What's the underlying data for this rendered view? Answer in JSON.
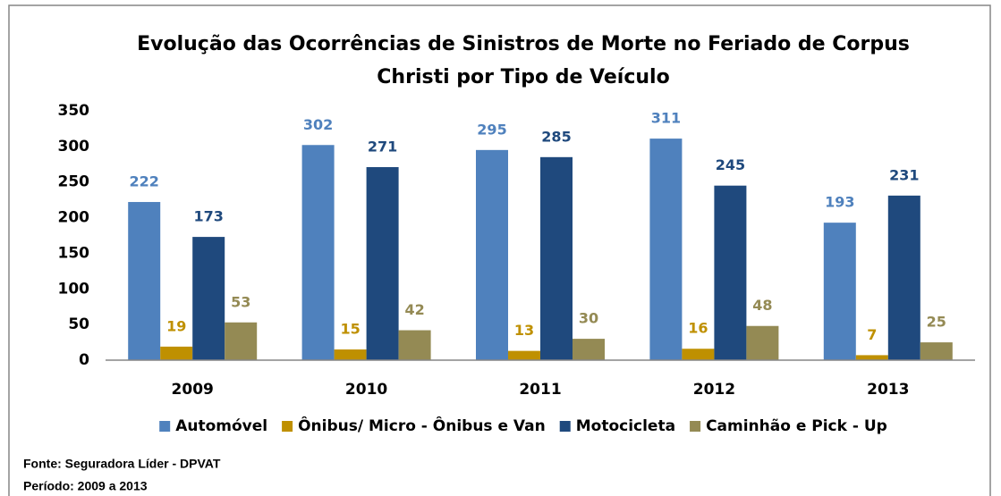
{
  "chart_data": {
    "type": "bar",
    "title": [
      "Evolução das Ocorrências de Sinistros de Morte no Feriado de Corpus",
      "Christi por Tipo de Veículo"
    ],
    "categories": [
      "2009",
      "2010",
      "2011",
      "2012",
      "2013"
    ],
    "series": [
      {
        "name": "Automóvel",
        "color": "#4f81bd",
        "values": [
          222,
          302,
          295,
          311,
          193
        ]
      },
      {
        "name": "Ônibus/ Micro - Ônibus e Van",
        "color": "#bf9000",
        "values": [
          19,
          15,
          13,
          16,
          7
        ]
      },
      {
        "name": "Motocicleta",
        "color": "#1f497d",
        "values": [
          173,
          271,
          285,
          245,
          231
        ]
      },
      {
        "name": "Caminhão e Pick - Up",
        "color": "#948a54",
        "values": [
          53,
          42,
          30,
          48,
          25
        ]
      }
    ],
    "ylim": [
      0,
      350
    ],
    "yticks": [
      0,
      50,
      100,
      150,
      200,
      250,
      300,
      350
    ],
    "grid": false,
    "legend": "bottom",
    "notes": [
      "Fonte: Seguradora Líder - DPVAT",
      "Período: 2009 a 2013"
    ]
  }
}
